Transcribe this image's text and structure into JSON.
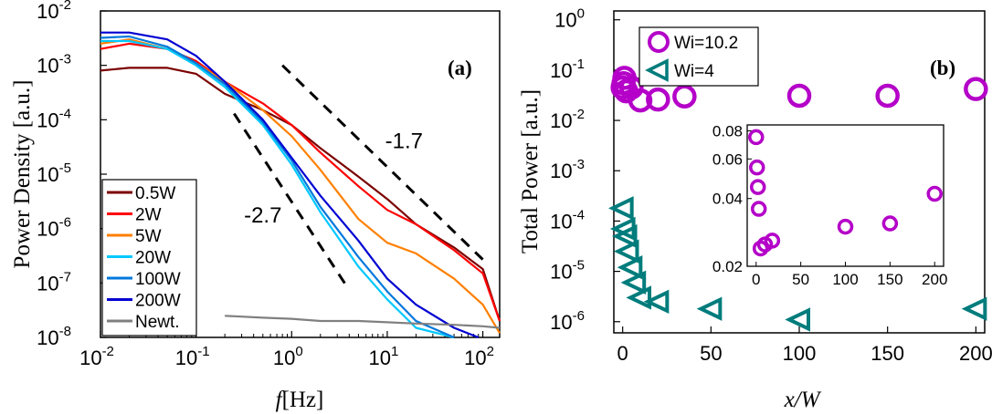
{
  "chart_data": [
    {
      "type": "line",
      "panel_label": "(a)",
      "xlabel_italic": "f",
      "xlabel_rest": "[Hz]",
      "ylabel": "Power Density [a.u.]",
      "xscale": "log",
      "yscale": "log",
      "xlim": [
        0.01,
        150
      ],
      "ylim": [
        1e-08,
        0.01
      ],
      "x_ticks": [
        "10",
        "10",
        "10",
        "10",
        "10"
      ],
      "x_tick_exps": [
        "-2",
        "-1",
        "0",
        "1",
        "2"
      ],
      "y_ticks": [
        "10",
        "10",
        "10",
        "10",
        "10",
        "10",
        "10"
      ],
      "y_tick_exps": [
        "-8",
        "-7",
        "-6",
        "-5",
        "-4",
        "-3",
        "-2"
      ],
      "legend_position": "lower-left",
      "series": [
        {
          "name": "0.5W",
          "color": "#7b0000",
          "points": [
            [
              0.01,
              0.0008
            ],
            [
              0.02,
              0.0009
            ],
            [
              0.05,
              0.0009
            ],
            [
              0.1,
              0.0007
            ],
            [
              0.2,
              0.0003
            ],
            [
              0.5,
              0.00015
            ],
            [
              1,
              8e-05
            ],
            [
              2,
              3e-05
            ],
            [
              5,
              9e-06
            ],
            [
              10,
              3.5e-06
            ],
            [
              20,
              1.2e-06
            ],
            [
              50,
              4.5e-07
            ],
            [
              100,
              1.8e-07
            ],
            [
              150,
              2e-08
            ]
          ]
        },
        {
          "name": "2W",
          "color": "#ff0000",
          "points": [
            [
              0.01,
              0.002
            ],
            [
              0.02,
              0.0025
            ],
            [
              0.05,
              0.002
            ],
            [
              0.1,
              0.0012
            ],
            [
              0.2,
              0.0005
            ],
            [
              0.5,
              0.0002
            ],
            [
              1,
              8e-05
            ],
            [
              2,
              2.5e-05
            ],
            [
              5,
              6e-06
            ],
            [
              10,
              2.2e-06
            ],
            [
              20,
              1.2e-06
            ],
            [
              50,
              4e-07
            ],
            [
              100,
              1.5e-07
            ],
            [
              150,
              2e-08
            ]
          ]
        },
        {
          "name": "5W",
          "color": "#ff8000",
          "points": [
            [
              0.01,
              0.0025
            ],
            [
              0.02,
              0.003
            ],
            [
              0.05,
              0.002
            ],
            [
              0.1,
              0.0011
            ],
            [
              0.2,
              0.0005
            ],
            [
              0.5,
              0.00015
            ],
            [
              1,
              5e-05
            ],
            [
              2,
              1.2e-05
            ],
            [
              5,
              1.5e-06
            ],
            [
              10,
              5.5e-07
            ],
            [
              20,
              3.5e-07
            ],
            [
              50,
              1.2e-07
            ],
            [
              100,
              4e-08
            ],
            [
              150,
              1.2e-08
            ]
          ]
        },
        {
          "name": "20W",
          "color": "#00c8ff",
          "points": [
            [
              0.01,
              0.0028
            ],
            [
              0.02,
              0.0028
            ],
            [
              0.05,
              0.002
            ],
            [
              0.1,
              0.001
            ],
            [
              0.2,
              0.0004
            ],
            [
              0.5,
              8e-05
            ],
            [
              1,
              1.5e-05
            ],
            [
              2,
              2e-06
            ],
            [
              5,
              2e-07
            ],
            [
              10,
              5e-08
            ],
            [
              20,
              1.5e-08
            ],
            [
              50,
              1e-08
            ]
          ]
        },
        {
          "name": "100W",
          "color": "#0078dc",
          "points": [
            [
              0.01,
              0.0032
            ],
            [
              0.02,
              0.0034
            ],
            [
              0.05,
              0.0022
            ],
            [
              0.1,
              0.0011
            ],
            [
              0.2,
              0.00045
            ],
            [
              0.5,
              9e-05
            ],
            [
              1,
              1.8e-05
            ],
            [
              2,
              2.5e-06
            ],
            [
              5,
              3e-07
            ],
            [
              10,
              7e-08
            ],
            [
              20,
              2e-08
            ],
            [
              50,
              1e-08
            ]
          ]
        },
        {
          "name": "200W",
          "color": "#0000d2",
          "points": [
            [
              0.01,
              0.004
            ],
            [
              0.02,
              0.004
            ],
            [
              0.05,
              0.003
            ],
            [
              0.1,
              0.0015
            ],
            [
              0.2,
              0.0005
            ],
            [
              0.5,
              0.0001
            ],
            [
              1,
              2e-05
            ],
            [
              2,
              4e-06
            ],
            [
              5,
              6e-07
            ],
            [
              10,
              1.2e-07
            ],
            [
              20,
              4e-08
            ],
            [
              50,
              1.5e-08
            ],
            [
              90,
              1e-08
            ]
          ]
        },
        {
          "name": "Newt.",
          "color": "#808080",
          "points": [
            [
              0.2,
              2.5e-08
            ],
            [
              0.5,
              2.3e-08
            ],
            [
              1,
              2.2e-08
            ],
            [
              2,
              2e-08
            ],
            [
              5,
              2e-08
            ],
            [
              10,
              1.9e-08
            ],
            [
              20,
              1.8e-08
            ],
            [
              50,
              1.7e-08
            ],
            [
              100,
              1.6e-08
            ],
            [
              150,
              1.5e-08
            ]
          ]
        }
      ],
      "annotations": [
        {
          "text": "-1.7",
          "slope": -1.7
        },
        {
          "text": "-2.7",
          "slope": -2.7
        }
      ],
      "slope_lines": [
        {
          "x": [
            0.8,
            100
          ],
          "y": [
            0.001,
            2.7e-07
          ]
        },
        {
          "x": [
            0.25,
            4
          ],
          "y": [
            0.00013,
            7.4e-08
          ]
        }
      ],
      "annotation_positions": [
        [
          15,
          3e-05
        ],
        [
          0.5,
          1.3e-06
        ]
      ]
    },
    {
      "type": "scatter",
      "panel_label": "(b)",
      "xlabel": "x/W",
      "ylabel": "Total Power [a.u.]",
      "yscale": "log",
      "xlim": [
        -5,
        205
      ],
      "ylim": [
        6e-07,
        1.5
      ],
      "x_ticks": [
        "0",
        "50",
        "100",
        "150",
        "200"
      ],
      "y_ticks": [
        "10",
        "10",
        "10",
        "10",
        "10",
        "10",
        "10"
      ],
      "y_tick_exps": [
        "-6",
        "-5",
        "-4",
        "-3",
        "-2",
        "-1",
        "0"
      ],
      "legend_position": "top-left",
      "series": [
        {
          "name": "Wi=10.2",
          "color": "#b400c8",
          "marker": "circle",
          "x": [
            0,
            0.5,
            1,
            2,
            5,
            10,
            20,
            35,
            100,
            150,
            200
          ],
          "y": [
            0.045,
            0.055,
            0.07,
            0.038,
            0.045,
            0.025,
            0.026,
            0.03,
            0.031,
            0.031,
            0.042
          ]
        },
        {
          "name": "Wi=4",
          "color": "#007c7c",
          "marker": "triangle-left",
          "x": [
            0,
            1,
            2,
            3,
            5,
            7,
            10,
            20,
            50,
            100,
            200
          ],
          "y": [
            0.00018,
            7e-05,
            5e-05,
            2.5e-05,
            1.2e-05,
            6e-06,
            3e-06,
            2.5e-06,
            1.8e-06,
            1.1e-06,
            1.8e-06
          ]
        }
      ],
      "inset": {
        "xlim": [
          -10,
          210
        ],
        "ylim": [
          0.02,
          0.085
        ],
        "yscale": "log",
        "x_ticks": [
          "0",
          "50",
          "100",
          "150",
          "200"
        ],
        "y_ticks": [
          "0.02",
          "0.04",
          "0.06",
          "0.08"
        ],
        "series_name": "Wi=10.2",
        "x": [
          0,
          1,
          2,
          3,
          5,
          10,
          18,
          100,
          150,
          200
        ],
        "y": [
          0.075,
          0.055,
          0.045,
          0.036,
          0.024,
          0.025,
          0.026,
          0.03,
          0.031,
          0.042
        ]
      }
    }
  ]
}
